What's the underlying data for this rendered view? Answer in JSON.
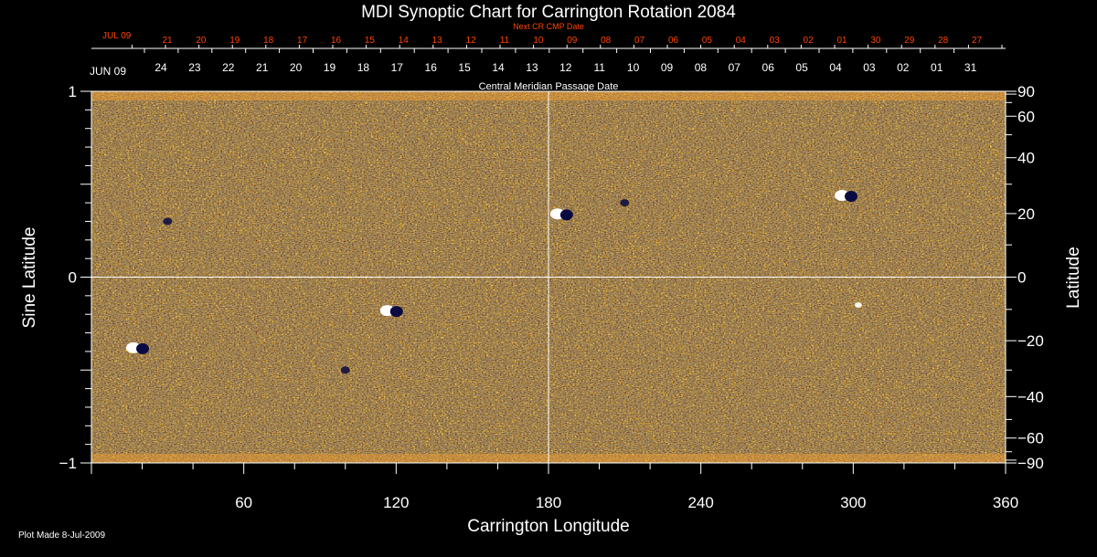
{
  "chart_data": {
    "type": "heatmap",
    "title": "MDI Synoptic Chart for Carrington Rotation 2084",
    "xlabel": "Carrington Longitude",
    "ylabel_left": "Sine Latitude",
    "ylabel_right": "Latitude",
    "xlim": [
      0,
      360
    ],
    "ylim": [
      -1,
      1
    ],
    "x_ticks": [
      60,
      120,
      180,
      240,
      300,
      360
    ],
    "y_ticks_left": [
      {
        "value": 1,
        "label": "1"
      },
      {
        "value": 0,
        "label": "0"
      },
      {
        "value": -1,
        "label": "−1"
      }
    ],
    "y_ticks_right_degrees": [
      90,
      60,
      40,
      20,
      0,
      -20,
      -40,
      -60,
      -90
    ],
    "y_tick_labels_right": [
      "90",
      "60",
      "40",
      "20",
      "0",
      "−20",
      "−40",
      "−60",
      "−90"
    ],
    "crosshair": {
      "longitude": 180,
      "sine_latitude": 0
    },
    "top_axis_outer": {
      "title": "Next CR CMP Date",
      "month_label": "JUL 09",
      "labels": [
        "21",
        "20",
        "19",
        "18",
        "17",
        "16",
        "15",
        "14",
        "13",
        "12",
        "11",
        "10",
        "09",
        "08",
        "07",
        "06",
        "05",
        "04",
        "03",
        "02",
        "01",
        "30",
        "29",
        "28",
        "27"
      ]
    },
    "top_axis_inner": {
      "title": "Central Meridian Passage Date",
      "month_label": "JUN 09",
      "labels": [
        "24",
        "23",
        "22",
        "21",
        "20",
        "19",
        "18",
        "17",
        "16",
        "15",
        "14",
        "13",
        "12",
        "11",
        "10",
        "09",
        "08",
        "07",
        "06",
        "05",
        "04",
        "03",
        "02",
        "01",
        "31"
      ]
    },
    "active_regions": [
      {
        "longitude": 18,
        "sine_latitude": -0.38,
        "polarity": "bipolar"
      },
      {
        "longitude": 30,
        "sine_latitude": 0.3,
        "polarity": "negative"
      },
      {
        "longitude": 100,
        "sine_latitude": -0.5,
        "polarity": "negative"
      },
      {
        "longitude": 118,
        "sine_latitude": -0.18,
        "polarity": "bipolar"
      },
      {
        "longitude": 185,
        "sine_latitude": 0.34,
        "polarity": "bipolar"
      },
      {
        "longitude": 210,
        "sine_latitude": 0.4,
        "polarity": "negative"
      },
      {
        "longitude": 297,
        "sine_latitude": 0.44,
        "polarity": "bipolar"
      },
      {
        "longitude": 302,
        "sine_latitude": -0.15,
        "polarity": "positive"
      }
    ],
    "colors": {
      "background": "#000000",
      "field_base": "#e85a10",
      "positive": "#ffffff",
      "negative": "#0a0a40",
      "axis": "#ffffff",
      "top_axis_outer": "#ff4500"
    }
  },
  "footer": {
    "plot_made": "Plot Made  8-Jul-2009"
  }
}
